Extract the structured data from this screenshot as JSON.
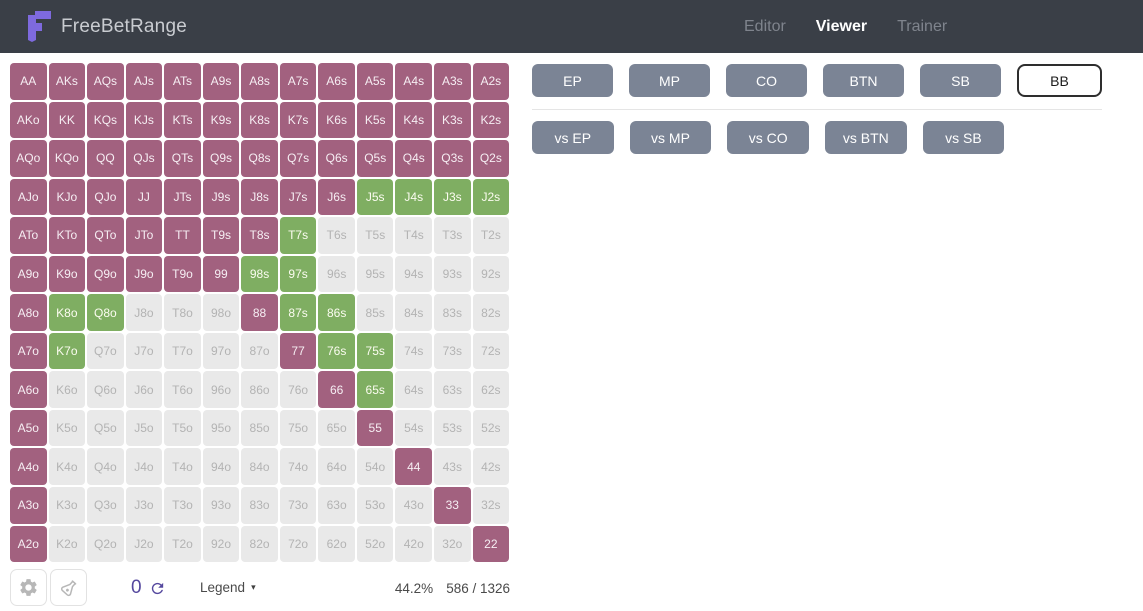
{
  "header": {
    "brand": "FreeBetRange",
    "tabs": [
      {
        "label": "Editor",
        "active": false
      },
      {
        "label": "Viewer",
        "active": true
      },
      {
        "label": "Trainer",
        "active": false
      }
    ]
  },
  "position_buttons": [
    {
      "label": "EP",
      "selected": false
    },
    {
      "label": "MP",
      "selected": false
    },
    {
      "label": "CO",
      "selected": false
    },
    {
      "label": "BTN",
      "selected": false
    },
    {
      "label": "SB",
      "selected": false
    },
    {
      "label": "BB",
      "selected": true
    }
  ],
  "vs_buttons": [
    {
      "label": "vs EP"
    },
    {
      "label": "vs MP"
    },
    {
      "label": "vs CO"
    },
    {
      "label": "vs BTN"
    },
    {
      "label": "vs SB"
    }
  ],
  "grid": {
    "state_colors": {
      "p": "#a2617f",
      "g": "#7fae62",
      "f": "#e9e9e9"
    },
    "state_names": {
      "p": "purple-selected",
      "g": "green-selected",
      "f": "unselected"
    },
    "rows": [
      [
        [
          "AA",
          "p"
        ],
        [
          "AKs",
          "p"
        ],
        [
          "AQs",
          "p"
        ],
        [
          "AJs",
          "p"
        ],
        [
          "ATs",
          "p"
        ],
        [
          "A9s",
          "p"
        ],
        [
          "A8s",
          "p"
        ],
        [
          "A7s",
          "p"
        ],
        [
          "A6s",
          "p"
        ],
        [
          "A5s",
          "p"
        ],
        [
          "A4s",
          "p"
        ],
        [
          "A3s",
          "p"
        ],
        [
          "A2s",
          "p"
        ]
      ],
      [
        [
          "AKo",
          "p"
        ],
        [
          "KK",
          "p"
        ],
        [
          "KQs",
          "p"
        ],
        [
          "KJs",
          "p"
        ],
        [
          "KTs",
          "p"
        ],
        [
          "K9s",
          "p"
        ],
        [
          "K8s",
          "p"
        ],
        [
          "K7s",
          "p"
        ],
        [
          "K6s",
          "p"
        ],
        [
          "K5s",
          "p"
        ],
        [
          "K4s",
          "p"
        ],
        [
          "K3s",
          "p"
        ],
        [
          "K2s",
          "p"
        ]
      ],
      [
        [
          "AQo",
          "p"
        ],
        [
          "KQo",
          "p"
        ],
        [
          "QQ",
          "p"
        ],
        [
          "QJs",
          "p"
        ],
        [
          "QTs",
          "p"
        ],
        [
          "Q9s",
          "p"
        ],
        [
          "Q8s",
          "p"
        ],
        [
          "Q7s",
          "p"
        ],
        [
          "Q6s",
          "p"
        ],
        [
          "Q5s",
          "p"
        ],
        [
          "Q4s",
          "p"
        ],
        [
          "Q3s",
          "p"
        ],
        [
          "Q2s",
          "p"
        ]
      ],
      [
        [
          "AJo",
          "p"
        ],
        [
          "KJo",
          "p"
        ],
        [
          "QJo",
          "p"
        ],
        [
          "JJ",
          "p"
        ],
        [
          "JTs",
          "p"
        ],
        [
          "J9s",
          "p"
        ],
        [
          "J8s",
          "p"
        ],
        [
          "J7s",
          "p"
        ],
        [
          "J6s",
          "p"
        ],
        [
          "J5s",
          "g"
        ],
        [
          "J4s",
          "g"
        ],
        [
          "J3s",
          "g"
        ],
        [
          "J2s",
          "g"
        ]
      ],
      [
        [
          "ATo",
          "p"
        ],
        [
          "KTo",
          "p"
        ],
        [
          "QTo",
          "p"
        ],
        [
          "JTo",
          "p"
        ],
        [
          "TT",
          "p"
        ],
        [
          "T9s",
          "p"
        ],
        [
          "T8s",
          "p"
        ],
        [
          "T7s",
          "g"
        ],
        [
          "T6s",
          "f"
        ],
        [
          "T5s",
          "f"
        ],
        [
          "T4s",
          "f"
        ],
        [
          "T3s",
          "f"
        ],
        [
          "T2s",
          "f"
        ]
      ],
      [
        [
          "A9o",
          "p"
        ],
        [
          "K9o",
          "p"
        ],
        [
          "Q9o",
          "p"
        ],
        [
          "J9o",
          "p"
        ],
        [
          "T9o",
          "p"
        ],
        [
          "99",
          "p"
        ],
        [
          "98s",
          "g"
        ],
        [
          "97s",
          "g"
        ],
        [
          "96s",
          "f"
        ],
        [
          "95s",
          "f"
        ],
        [
          "94s",
          "f"
        ],
        [
          "93s",
          "f"
        ],
        [
          "92s",
          "f"
        ]
      ],
      [
        [
          "A8o",
          "p"
        ],
        [
          "K8o",
          "g"
        ],
        [
          "Q8o",
          "g"
        ],
        [
          "J8o",
          "f"
        ],
        [
          "T8o",
          "f"
        ],
        [
          "98o",
          "f"
        ],
        [
          "88",
          "p"
        ],
        [
          "87s",
          "g"
        ],
        [
          "86s",
          "g"
        ],
        [
          "85s",
          "f"
        ],
        [
          "84s",
          "f"
        ],
        [
          "83s",
          "f"
        ],
        [
          "82s",
          "f"
        ]
      ],
      [
        [
          "A7o",
          "p"
        ],
        [
          "K7o",
          "g"
        ],
        [
          "Q7o",
          "f"
        ],
        [
          "J7o",
          "f"
        ],
        [
          "T7o",
          "f"
        ],
        [
          "97o",
          "f"
        ],
        [
          "87o",
          "f"
        ],
        [
          "77",
          "p"
        ],
        [
          "76s",
          "g"
        ],
        [
          "75s",
          "g"
        ],
        [
          "74s",
          "f"
        ],
        [
          "73s",
          "f"
        ],
        [
          "72s",
          "f"
        ]
      ],
      [
        [
          "A6o",
          "p"
        ],
        [
          "K6o",
          "f"
        ],
        [
          "Q6o",
          "f"
        ],
        [
          "J6o",
          "f"
        ],
        [
          "T6o",
          "f"
        ],
        [
          "96o",
          "f"
        ],
        [
          "86o",
          "f"
        ],
        [
          "76o",
          "f"
        ],
        [
          "66",
          "p"
        ],
        [
          "65s",
          "g"
        ],
        [
          "64s",
          "f"
        ],
        [
          "63s",
          "f"
        ],
        [
          "62s",
          "f"
        ]
      ],
      [
        [
          "A5o",
          "p"
        ],
        [
          "K5o",
          "f"
        ],
        [
          "Q5o",
          "f"
        ],
        [
          "J5o",
          "f"
        ],
        [
          "T5o",
          "f"
        ],
        [
          "95o",
          "f"
        ],
        [
          "85o",
          "f"
        ],
        [
          "75o",
          "f"
        ],
        [
          "65o",
          "f"
        ],
        [
          "55",
          "p"
        ],
        [
          "54s",
          "f"
        ],
        [
          "53s",
          "f"
        ],
        [
          "52s",
          "f"
        ]
      ],
      [
        [
          "A4o",
          "p"
        ],
        [
          "K4o",
          "f"
        ],
        [
          "Q4o",
          "f"
        ],
        [
          "J4o",
          "f"
        ],
        [
          "T4o",
          "f"
        ],
        [
          "94o",
          "f"
        ],
        [
          "84o",
          "f"
        ],
        [
          "74o",
          "f"
        ],
        [
          "64o",
          "f"
        ],
        [
          "54o",
          "f"
        ],
        [
          "44",
          "p"
        ],
        [
          "43s",
          "f"
        ],
        [
          "42s",
          "f"
        ]
      ],
      [
        [
          "A3o",
          "p"
        ],
        [
          "K3o",
          "f"
        ],
        [
          "Q3o",
          "f"
        ],
        [
          "J3o",
          "f"
        ],
        [
          "T3o",
          "f"
        ],
        [
          "93o",
          "f"
        ],
        [
          "83o",
          "f"
        ],
        [
          "73o",
          "f"
        ],
        [
          "63o",
          "f"
        ],
        [
          "53o",
          "f"
        ],
        [
          "43o",
          "f"
        ],
        [
          "33",
          "p"
        ],
        [
          "32s",
          "f"
        ]
      ],
      [
        [
          "A2o",
          "p"
        ],
        [
          "K2o",
          "f"
        ],
        [
          "Q2o",
          "f"
        ],
        [
          "J2o",
          "f"
        ],
        [
          "T2o",
          "f"
        ],
        [
          "92o",
          "f"
        ],
        [
          "82o",
          "f"
        ],
        [
          "72o",
          "f"
        ],
        [
          "62o",
          "f"
        ],
        [
          "52o",
          "f"
        ],
        [
          "42o",
          "f"
        ],
        [
          "32o",
          "f"
        ],
        [
          "22",
          "p"
        ]
      ]
    ]
  },
  "footer": {
    "reset_count": "0",
    "legend_label": "Legend",
    "legend_caret": "▾",
    "selected_percent": "44.2%",
    "combo_count": "586 / 1326"
  },
  "colors": {
    "header_bg": "#3a3f47",
    "logo_purple": "#7e6ade",
    "button_slate": "#7b8495",
    "accent_indigo": "#55489e",
    "cell_purple": "#a2617f",
    "cell_green": "#7fae62",
    "cell_gray": "#e9e9e9"
  }
}
